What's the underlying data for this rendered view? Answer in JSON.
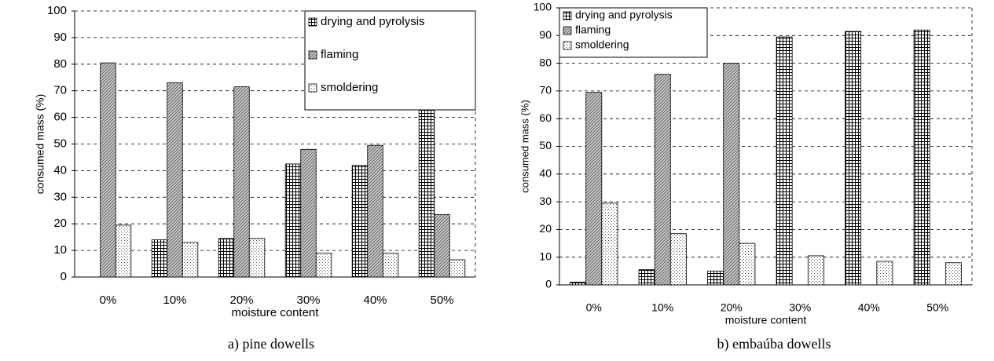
{
  "chart_data": [
    {
      "type": "bar",
      "caption": "a) pine dowells",
      "xlabel": "moisture content",
      "ylabel": "consumed mass (%)",
      "categories": [
        "0%",
        "10%",
        "20%",
        "30%",
        "40%",
        "50%"
      ],
      "series": [
        {
          "name": "drying and pyrolysis",
          "pattern": "crosshatch",
          "values": [
            null,
            14,
            14.5,
            42.5,
            42,
            70
          ]
        },
        {
          "name": "flaming",
          "pattern": "diagonal",
          "values": [
            80.5,
            73,
            71.5,
            48,
            49.5,
            23.5
          ]
        },
        {
          "name": "smoldering",
          "pattern": "dots",
          "values": [
            19.5,
            13,
            14.5,
            9,
            9,
            6.5
          ]
        }
      ],
      "ylim": [
        0,
        100
      ],
      "yticks": [
        0,
        10,
        20,
        30,
        40,
        50,
        60,
        70,
        80,
        90,
        100
      ],
      "grid": true,
      "legend": "top-right"
    },
    {
      "type": "bar",
      "caption": "b) embaúba dowells",
      "xlabel": "moisture content",
      "ylabel": "consumed mass (%)",
      "categories": [
        "0%",
        "10%",
        "20%",
        "30%",
        "40%",
        "50%"
      ],
      "series": [
        {
          "name": "drying and pyrolysis",
          "pattern": "crosshatch",
          "values": [
            1,
            5.5,
            5,
            89.5,
            91.5,
            92
          ]
        },
        {
          "name": "flaming",
          "pattern": "diagonal",
          "values": [
            69.5,
            76,
            80,
            null,
            null,
            null
          ]
        },
        {
          "name": "smoldering",
          "pattern": "dots",
          "values": [
            29.5,
            18.5,
            15,
            10.5,
            8.5,
            8
          ]
        }
      ],
      "ylim": [
        0,
        100
      ],
      "yticks": [
        0,
        10,
        20,
        30,
        40,
        50,
        60,
        70,
        80,
        90,
        100
      ],
      "grid": true,
      "legend": "top-left"
    }
  ]
}
